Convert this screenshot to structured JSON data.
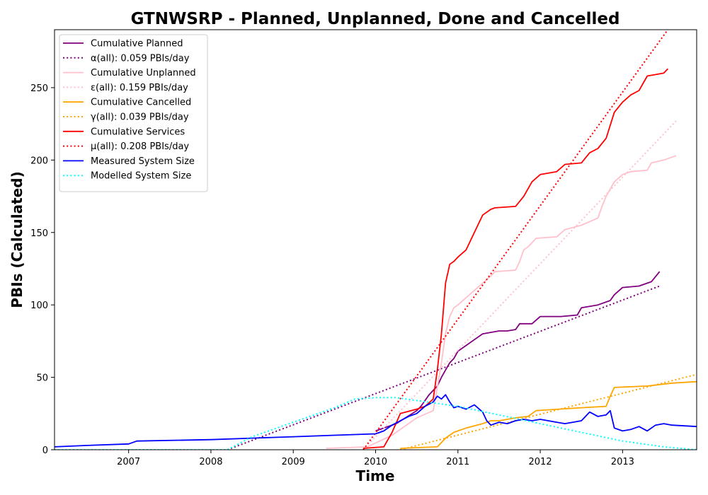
{
  "chart_data": {
    "type": "line",
    "title": "GTNWSRP - Planned, Unplanned, Done  and Cancelled",
    "xlabel": "Time",
    "ylabel": "PBIs (Calculated)",
    "xlim": [
      2006.1,
      2013.9
    ],
    "ylim": [
      0,
      290
    ],
    "x_ticks": [
      2007,
      2008,
      2009,
      2010,
      2011,
      2012,
      2013
    ],
    "y_ticks": [
      0,
      50,
      100,
      150,
      200,
      250
    ],
    "grid": false,
    "legend_position": "top-left",
    "series": [
      {
        "name": "Cumulative Planned",
        "style": "solid",
        "color": "#800080",
        "x": [
          2010.0,
          2010.25,
          2010.5,
          2010.55,
          2010.65,
          2010.75,
          2010.8,
          2010.85,
          2010.9,
          2010.95,
          2011.0,
          2011.1,
          2011.2,
          2011.3,
          2011.5,
          2011.6,
          2011.7,
          2011.75,
          2011.9,
          2012.0,
          2012.25,
          2012.45,
          2012.5,
          2012.7,
          2012.85,
          2012.9,
          2013.0,
          2013.2,
          2013.35,
          2013.45
        ],
        "y": [
          13,
          18,
          27,
          30,
          38,
          44,
          50,
          55,
          60,
          63,
          68,
          72,
          76,
          80,
          82,
          82,
          83,
          87,
          87,
          92,
          92,
          93,
          98,
          100,
          103,
          107,
          112,
          113,
          116,
          123
        ]
      },
      {
        "name": "α(all): 0.059 PBIs/day",
        "style": "dotted",
        "color": "#800080",
        "x": [
          2008.2,
          2013.45
        ],
        "y": [
          0,
          113
        ]
      },
      {
        "name": "Cumulative Unplanned",
        "style": "solid",
        "color": "#ffc0cb",
        "x": [
          2009.4,
          2009.9,
          2010.2,
          2010.5,
          2010.7,
          2010.8,
          2010.85,
          2010.9,
          2010.95,
          2011.0,
          2011.1,
          2011.2,
          2011.3,
          2011.4,
          2011.45,
          2011.7,
          2011.75,
          2011.8,
          2011.85,
          2011.95,
          2012.2,
          2012.3,
          2012.5,
          2012.7,
          2012.75,
          2012.8,
          2012.9,
          2013.0,
          2013.1,
          2013.3,
          2013.35,
          2013.5,
          2013.65
        ],
        "y": [
          1,
          2,
          10,
          22,
          27,
          60,
          80,
          92,
          98,
          100,
          105,
          110,
          115,
          120,
          123,
          124,
          130,
          138,
          140,
          146,
          147,
          152,
          155,
          160,
          168,
          175,
          185,
          190,
          192,
          193,
          198,
          200,
          203
        ]
      },
      {
        "name": "ε(all): 0.159 PBIs/day",
        "style": "dotted",
        "color": "#ffc0cb",
        "x": [
          2009.85,
          2013.65
        ],
        "y": [
          0,
          227
        ]
      },
      {
        "name": "Cumulative Cancelled",
        "style": "solid",
        "color": "#ffa500",
        "x": [
          2010.3,
          2010.75,
          2010.8,
          2010.85,
          2010.95,
          2011.1,
          2011.3,
          2011.4,
          2011.5,
          2011.7,
          2011.85,
          2011.95,
          2012.5,
          2012.8,
          2012.85,
          2012.9,
          2013.3,
          2013.6,
          2013.9
        ],
        "y": [
          1,
          2,
          5,
          8,
          12,
          15,
          18,
          20,
          20,
          22,
          23,
          27,
          29,
          30,
          37,
          43,
          44,
          46,
          47
        ]
      },
      {
        "name": "γ(all): 0.039 PBIs/day",
        "style": "dotted",
        "color": "#ffa500",
        "x": [
          2010.3,
          2013.9
        ],
        "y": [
          0,
          52
        ]
      },
      {
        "name": "Cumulative Services",
        "style": "solid",
        "color": "#ff0000",
        "x": [
          2009.85,
          2010.1,
          2010.2,
          2010.3,
          2010.5,
          2010.6,
          2010.7,
          2010.75,
          2010.8,
          2010.85,
          2010.9,
          2010.95,
          2011.0,
          2011.1,
          2011.2,
          2011.3,
          2011.4,
          2011.45,
          2011.7,
          2011.8,
          2011.9,
          2012.0,
          2012.2,
          2012.3,
          2012.5,
          2012.6,
          2012.7,
          2012.8,
          2012.9,
          2013.0,
          2013.1,
          2013.2,
          2013.3,
          2013.5,
          2013.55
        ],
        "y": [
          1,
          2,
          12,
          25,
          28,
          30,
          35,
          55,
          80,
          115,
          128,
          130,
          133,
          138,
          150,
          162,
          166,
          167,
          168,
          175,
          185,
          190,
          192,
          197,
          198,
          205,
          208,
          215,
          233,
          240,
          245,
          248,
          258,
          260,
          263
        ]
      },
      {
        "name": "μ(all): 0.208 PBIs/day",
        "style": "dotted",
        "color": "#ff0000",
        "x": [
          2009.85,
          2013.55
        ],
        "y": [
          0,
          290
        ]
      },
      {
        "name": "Measured System Size",
        "style": "solid",
        "color": "#0000ff",
        "x": [
          2006.1,
          2006.5,
          2007.0,
          2007.1,
          2008.0,
          2008.5,
          2009.0,
          2009.5,
          2010.0,
          2010.1,
          2010.2,
          2010.3,
          2010.4,
          2010.5,
          2010.6,
          2010.7,
          2010.75,
          2010.8,
          2010.85,
          2010.9,
          2010.95,
          2011.0,
          2011.1,
          2011.2,
          2011.3,
          2011.35,
          2011.4,
          2011.5,
          2011.6,
          2011.7,
          2011.8,
          2011.9,
          2012.0,
          2012.2,
          2012.3,
          2012.5,
          2012.6,
          2012.7,
          2012.8,
          2012.85,
          2012.9,
          2013.0,
          2013.1,
          2013.2,
          2013.3,
          2013.4,
          2013.5,
          2013.6,
          2013.9
        ],
        "y": [
          2,
          3,
          4,
          6,
          7,
          8,
          9,
          10,
          11,
          13,
          17,
          20,
          23,
          25,
          30,
          33,
          37,
          35,
          38,
          33,
          29,
          30,
          28,
          31,
          26,
          20,
          17,
          19,
          18,
          20,
          21,
          20,
          21,
          19,
          18,
          20,
          26,
          23,
          24,
          27,
          15,
          13,
          14,
          16,
          13,
          17,
          18,
          17,
          16
        ]
      },
      {
        "name": "Modelled System Size",
        "style": "dotted",
        "color": "#00ffff",
        "x": [
          2006.1,
          2008.2,
          2008.5,
          2009.0,
          2009.5,
          2009.75,
          2010.0,
          2010.25,
          2010.5,
          2010.75,
          2011.0,
          2011.25,
          2011.5,
          2011.75,
          2012.0,
          2012.25,
          2012.5,
          2012.75,
          2013.0,
          2013.25,
          2013.5,
          2013.7,
          2013.9
        ],
        "y": [
          0,
          0,
          9,
          19,
          29,
          35,
          36,
          36,
          34,
          32,
          30,
          27,
          24,
          21,
          18,
          15,
          12,
          9,
          6,
          4,
          2,
          1,
          0
        ]
      }
    ]
  }
}
